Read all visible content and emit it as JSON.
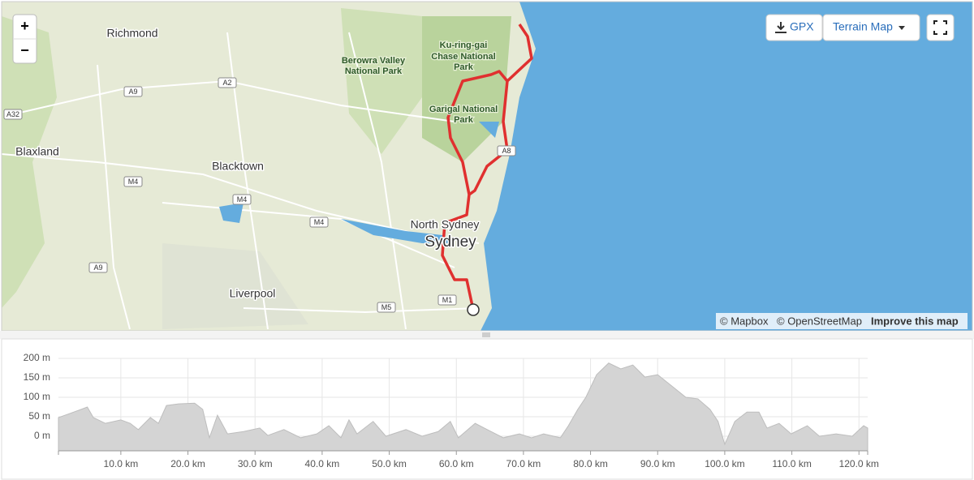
{
  "map": {
    "zoom_in": "+",
    "zoom_out": "−",
    "gpx_button": "GPX",
    "map_type_button": "Terrain Map",
    "places": [
      "Richmond",
      "Berowra Valley",
      "National Park",
      "Ku-ring-gai",
      "Chase National",
      "Park",
      "Garigal National",
      "Park",
      "Blaxland",
      "Blacktown",
      "Liverpool",
      "North Sydney",
      "Sydney"
    ],
    "roads": [
      "A2",
      "A9",
      "A32",
      "M4",
      "M4",
      "M4",
      "A9",
      "M5",
      "M1",
      "A8"
    ],
    "attribution": [
      "© Mapbox",
      "© OpenStreetMap",
      "Improve this map"
    ]
  },
  "chart_data": {
    "type": "area",
    "color": "#d4d4d4",
    "x": [
      0.7,
      1.7,
      4.1,
      5.0,
      5.9,
      7.7,
      10.0,
      11.4,
      12.6,
      14.4,
      15.6,
      16.8,
      18.6,
      21.0,
      22.2,
      23.2,
      24.4,
      25.9,
      28.3,
      30.7,
      31.9,
      34.3,
      36.8,
      39.2,
      41.0,
      42.8,
      44.0,
      45.2,
      47.6,
      49.5,
      52.5,
      54.9,
      57.3,
      59.1,
      60.3,
      62.8,
      64.6,
      67.0,
      69.4,
      71.2,
      73.0,
      75.5,
      76.7,
      78.1,
      79.3,
      80.9,
      82.7,
      84.5,
      86.3,
      88.1,
      90.0,
      92.4,
      94.2,
      96.0,
      97.8,
      99.0,
      100.0,
      101.5,
      103.3,
      105.1,
      106.3,
      108.1,
      109.9,
      112.3,
      114.1,
      116.6,
      119.0,
      120.7,
      121.3
    ],
    "values": [
      48,
      54,
      69,
      75,
      48,
      33,
      42,
      33,
      17,
      48,
      33,
      79,
      83,
      85,
      69,
      -4,
      54,
      6,
      12,
      21,
      2,
      17,
      -4,
      6,
      27,
      -4,
      42,
      6,
      38,
      0,
      17,
      0,
      12,
      38,
      -4,
      33,
      17,
      -4,
      6,
      -4,
      6,
      -4,
      27,
      69,
      100,
      158,
      188,
      173,
      183,
      152,
      158,
      125,
      100,
      96,
      69,
      38,
      -21,
      38,
      62,
      62,
      21,
      33,
      6,
      27,
      0,
      6,
      0,
      27,
      21
    ],
    "xlim": [
      0.7,
      121.3
    ],
    "ylim": [
      -37.5,
      200
    ],
    "xticks": [
      {
        "value": 10,
        "label": "10.0 km"
      },
      {
        "value": 20,
        "label": "20.0 km"
      },
      {
        "value": 30,
        "label": "30.0 km"
      },
      {
        "value": 40,
        "label": "40.0 km"
      },
      {
        "value": 50,
        "label": "50.0 km"
      },
      {
        "value": 60,
        "label": "60.0 km"
      },
      {
        "value": 70,
        "label": "70.0 km"
      },
      {
        "value": 80,
        "label": "80.0 km"
      },
      {
        "value": 90,
        "label": "90.0 km"
      },
      {
        "value": 100,
        "label": "100.0 km"
      },
      {
        "value": 110,
        "label": "110.0 km"
      },
      {
        "value": 120,
        "label": "120.0 km"
      }
    ],
    "yticks": [
      {
        "value": 0,
        "label": "0 m"
      },
      {
        "value": 50,
        "label": "50 m"
      },
      {
        "value": 100,
        "label": "100 m"
      },
      {
        "value": 150,
        "label": "150 m"
      },
      {
        "value": 200,
        "label": "200 m"
      }
    ],
    "grid": true
  }
}
